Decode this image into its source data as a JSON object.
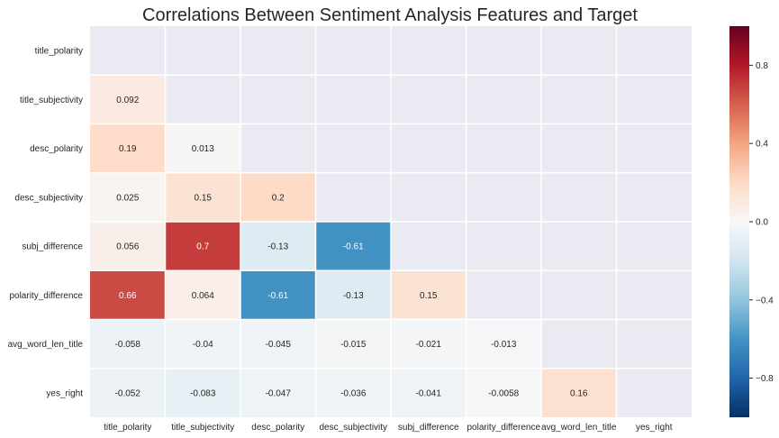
{
  "chart_data": {
    "type": "heatmap",
    "title": "Correlations Between Sentiment Analysis Features and Target",
    "variables": [
      "title_polarity",
      "title_subjectivity",
      "desc_polarity",
      "desc_subjectivity",
      "subj_difference",
      "polarity_difference",
      "avg_word_len_title",
      "yes_right"
    ],
    "mask": "upper-triangle-and-diagonal",
    "colormap": "RdBu_r",
    "vmin": -1,
    "vmax": 1,
    "colorbar_ticks": [
      {
        "value": 0.8,
        "label": "0.8"
      },
      {
        "value": 0.4,
        "label": "0.4"
      },
      {
        "value": 0.0,
        "label": "0.0"
      },
      {
        "value": -0.4,
        "label": "−0.4"
      },
      {
        "value": -0.8,
        "label": "−0.8"
      }
    ],
    "cells": [
      {
        "row": 1,
        "col": 0,
        "value": 0.092,
        "label": "0.092"
      },
      {
        "row": 2,
        "col": 0,
        "value": 0.19,
        "label": "0.19"
      },
      {
        "row": 2,
        "col": 1,
        "value": 0.013,
        "label": "0.013"
      },
      {
        "row": 3,
        "col": 0,
        "value": 0.025,
        "label": "0.025"
      },
      {
        "row": 3,
        "col": 1,
        "value": 0.15,
        "label": "0.15"
      },
      {
        "row": 3,
        "col": 2,
        "value": 0.2,
        "label": "0.2"
      },
      {
        "row": 4,
        "col": 0,
        "value": 0.056,
        "label": "0.056"
      },
      {
        "row": 4,
        "col": 1,
        "value": 0.7,
        "label": "0.7"
      },
      {
        "row": 4,
        "col": 2,
        "value": -0.13,
        "label": "-0.13"
      },
      {
        "row": 4,
        "col": 3,
        "value": -0.61,
        "label": "-0.61"
      },
      {
        "row": 5,
        "col": 0,
        "value": 0.66,
        "label": "0.66"
      },
      {
        "row": 5,
        "col": 1,
        "value": 0.064,
        "label": "0.064"
      },
      {
        "row": 5,
        "col": 2,
        "value": -0.61,
        "label": "-0.61"
      },
      {
        "row": 5,
        "col": 3,
        "value": -0.13,
        "label": "-0.13"
      },
      {
        "row": 5,
        "col": 4,
        "value": 0.15,
        "label": "0.15"
      },
      {
        "row": 6,
        "col": 0,
        "value": -0.058,
        "label": "-0.058"
      },
      {
        "row": 6,
        "col": 1,
        "value": -0.04,
        "label": "-0.04"
      },
      {
        "row": 6,
        "col": 2,
        "value": -0.045,
        "label": "-0.045"
      },
      {
        "row": 6,
        "col": 3,
        "value": -0.015,
        "label": "-0.015"
      },
      {
        "row": 6,
        "col": 4,
        "value": -0.021,
        "label": "-0.021"
      },
      {
        "row": 6,
        "col": 5,
        "value": -0.013,
        "label": "-0.013"
      },
      {
        "row": 7,
        "col": 0,
        "value": -0.052,
        "label": "-0.052"
      },
      {
        "row": 7,
        "col": 1,
        "value": -0.083,
        "label": "-0.083"
      },
      {
        "row": 7,
        "col": 2,
        "value": -0.047,
        "label": "-0.047"
      },
      {
        "row": 7,
        "col": 3,
        "value": -0.036,
        "label": "-0.036"
      },
      {
        "row": 7,
        "col": 4,
        "value": -0.041,
        "label": "-0.041"
      },
      {
        "row": 7,
        "col": 5,
        "value": -0.0058,
        "label": "-0.0058"
      },
      {
        "row": 7,
        "col": 6,
        "value": 0.16,
        "label": "0.16"
      }
    ],
    "colors": {
      "masked_background": "#eaeaf2",
      "cell_separator": "#ffffff",
      "text_dark": "#262626",
      "text_light": "#ffffff"
    }
  }
}
